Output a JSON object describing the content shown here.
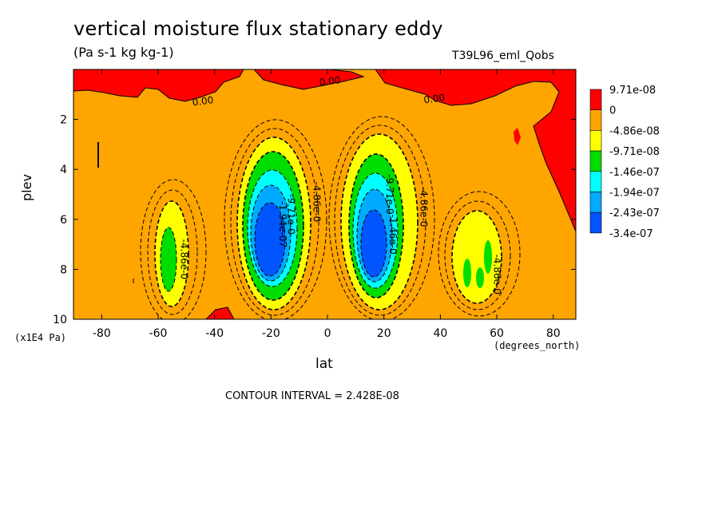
{
  "chart_data": {
    "type": "heatmap",
    "title": "vertical moisture flux stationary eddy",
    "units": "(Pa s-1 kg kg-1)",
    "run_label": "T39L96_eml_Qobs",
    "xlabel": "lat",
    "x_units": "(degrees_north)",
    "ylabel": "plev",
    "y_units": "(x1E4 Pa)",
    "xlim": [
      -90,
      88
    ],
    "ylim": [
      10,
      0
    ],
    "x_ticks": [
      -80,
      -60,
      -40,
      -20,
      0,
      20,
      40,
      60,
      80
    ],
    "x_tick_labels": [
      "-80",
      "-60",
      "-40",
      "-20",
      "0",
      "20",
      "40",
      "60",
      "80"
    ],
    "y_ticks": [
      2,
      4,
      6,
      8,
      10
    ],
    "y_tick_labels": [
      "2",
      "4",
      "6",
      "8",
      "10"
    ],
    "contour_interval_label": "CONTOUR INTERVAL = 2.428E-08",
    "legend": {
      "placement": "right",
      "colors": [
        "#ff0000",
        "#ffa500",
        "#ffff00",
        "#00dd00",
        "#00ffff",
        "#00aaff",
        "#0055ff"
      ],
      "labels": [
        "9.71e-08",
        "0",
        "-4.86e-08",
        "-9.71e-08",
        "-1.46e-07",
        "-1.94e-07",
        "-2.43e-07",
        "-3.4e-07"
      ]
    },
    "contour_labels": [
      {
        "text": "0.00",
        "lat": -44,
        "plev": 1.4
      },
      {
        "text": "0.00",
        "lat": 1,
        "plev": 0.6
      },
      {
        "text": "0.00",
        "lat": 38,
        "plev": 1.3
      },
      {
        "text": "-4.86e-0",
        "lat": -52,
        "plev": 7.6
      },
      {
        "text": "-1.94e-07",
        "lat": -17,
        "plev": 6.2
      },
      {
        "text": "-9.71e-0",
        "lat": -14,
        "plev": 5.8
      },
      {
        "text": "-4.86e-0",
        "lat": -5,
        "plev": 5.3
      },
      {
        "text": "-9.71e-0",
        "lat": 21,
        "plev": 5.0
      },
      {
        "text": "-1.46e-0",
        "lat": 22,
        "plev": 6.6
      },
      {
        "text": "-4.86e-0",
        "lat": 33,
        "plev": 5.5
      },
      {
        "text": "-4.86e-0",
        "lat": 59,
        "plev": 8.2
      }
    ]
  }
}
